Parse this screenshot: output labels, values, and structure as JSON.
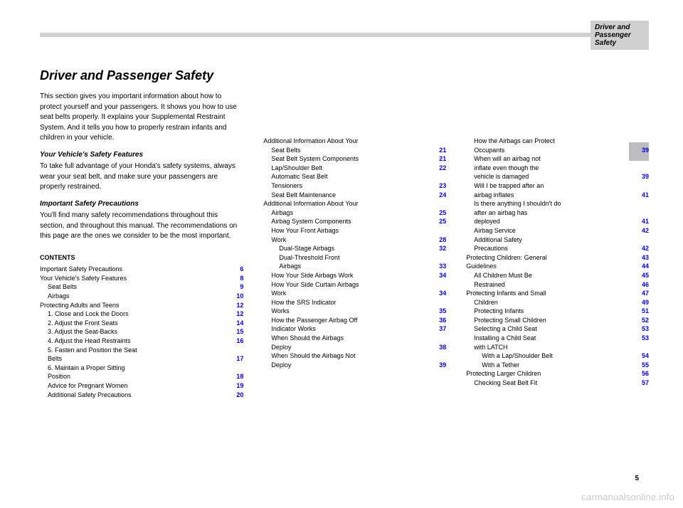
{
  "header": {
    "tab_label": "Driver and Passenger Safety"
  },
  "page_number": "5",
  "watermark": "carmanualsonline.info",
  "title": "Driver and Passenger Safety",
  "intro": {
    "p1": "This section gives you important information about how to protect yourself and your passengers. It shows you how to use seat belts properly. It explains your Supplemental Restraint System. And it tells you how to properly restrain infants and children in your vehicle.",
    "sub1": "Your Vehicle's Safety Features",
    "sub1_text": "To take full advantage of your Honda's safety systems, always wear your seat belt, and make sure your passengers are properly restrained.",
    "sub2": "Important Safety Precautions",
    "sub2_text": "You'll find many safety recommendations throughout this section, and throughout this manual. The recommendations on this page are the ones we consider to be the most important."
  },
  "contents_label": "CONTENTS",
  "col1": [
    {
      "t": "Important Safety Precautions",
      "p": "6",
      "cls": "row"
    },
    {
      "t": "Your Vehicle's Safety Features",
      "p": "8",
      "cls": "row"
    },
    {
      "t": "Seat Belts",
      "p": "9",
      "cls": "row ind1"
    },
    {
      "t": "Airbags",
      "p": "10",
      "cls": "row ind1"
    },
    {
      "t": "Protecting Adults and Teens",
      "p": "12",
      "cls": "row"
    },
    {
      "t": "1. Close and Lock the Doors",
      "p": "12",
      "cls": "row ind1"
    },
    {
      "t": "2. Adjust the Front Seats",
      "p": "14",
      "cls": "row ind1"
    },
    {
      "t": "3. Adjust the Seat-Backs",
      "p": "15",
      "cls": "row ind1"
    },
    {
      "t": "4. Adjust the Head Restraints",
      "p": "16",
      "cls": "row ind1"
    },
    {
      "t": "5. Fasten and Position the Seat",
      "p": "",
      "cls": "row ind1"
    },
    {
      "t": "   Belts",
      "p": "17",
      "cls": "row ind1"
    },
    {
      "t": "6. Maintain a Proper Sitting",
      "p": "",
      "cls": "row ind1"
    },
    {
      "t": "   Position",
      "p": "18",
      "cls": "row ind1"
    },
    {
      "t": "Advice for Pregnant Women",
      "p": "19",
      "cls": "row ind1"
    },
    {
      "t": "Additional Safety Precautions",
      "p": "20",
      "cls": "row ind1"
    }
  ],
  "col2": [
    {
      "t": "Additional Information About Your",
      "p": "",
      "cls": "row"
    },
    {
      "t": "Seat Belts",
      "p": "21",
      "cls": "row ind1"
    },
    {
      "t": "Seat Belt System Components",
      "p": "21",
      "cls": "row ind1"
    },
    {
      "t": "Lap/Shoulder Belt",
      "p": "22",
      "cls": "row ind1"
    },
    {
      "t": "Automatic Seat Belt",
      "p": "",
      "cls": "row ind1"
    },
    {
      "t": "   Tensioners",
      "p": "23",
      "cls": "row ind1"
    },
    {
      "t": "Seat Belt Maintenance",
      "p": "24",
      "cls": "row ind1"
    },
    {
      "t": "Additional Information About Your",
      "p": "",
      "cls": "row"
    },
    {
      "t": "Airbags",
      "p": "25",
      "cls": "row ind1"
    },
    {
      "t": "Airbag System Components",
      "p": "25",
      "cls": "row ind1"
    },
    {
      "t": "How Your Front Airbags",
      "p": "",
      "cls": "row ind1"
    },
    {
      "t": "   Work",
      "p": "28",
      "cls": "row ind1"
    },
    {
      "t": "Dual-Stage Airbags",
      "p": "32",
      "cls": "row ind2"
    },
    {
      "t": "Dual-Threshold Front",
      "p": "",
      "cls": "row ind2"
    },
    {
      "t": "   Airbags",
      "p": "33",
      "cls": "row ind2"
    },
    {
      "t": "How Your Side Airbags Work",
      "p": "34",
      "cls": "row ind1"
    },
    {
      "t": "How Your Side Curtain Airbags",
      "p": "",
      "cls": "row ind1"
    },
    {
      "t": "   Work",
      "p": "34",
      "cls": "row ind1"
    },
    {
      "t": "How the SRS Indicator",
      "p": "",
      "cls": "row ind1"
    },
    {
      "t": "   Works",
      "p": "35",
      "cls": "row ind1"
    },
    {
      "t": "How the Passenger Airbag Off",
      "p": "36",
      "cls": "row ind1"
    },
    {
      "t": "   Indicator Works",
      "p": "37",
      "cls": "row ind1"
    },
    {
      "t": "When Should the Airbags",
      "p": "",
      "cls": "row ind1"
    },
    {
      "t": "   Deploy",
      "p": "38",
      "cls": "row ind1"
    },
    {
      "t": "When Should the Airbags Not",
      "p": "",
      "cls": "row ind1"
    },
    {
      "t": "   Deploy",
      "p": "39",
      "cls": "row ind1"
    }
  ],
  "col3": [
    {
      "t": "How the Airbags can Protect",
      "p": "",
      "cls": "row ind1"
    },
    {
      "t": "   Occupants",
      "p": "39",
      "cls": "row ind1"
    },
    {
      "t": "When will an airbag not",
      "p": "",
      "cls": "row ind1"
    },
    {
      "t": "   inflate even though the",
      "p": "",
      "cls": "row ind1"
    },
    {
      "t": "   vehicle is damaged",
      "p": "39",
      "cls": "row ind1"
    },
    {
      "t": "Will I be trapped after an",
      "p": "",
      "cls": "row ind1"
    },
    {
      "t": "   airbag inflates",
      "p": "41",
      "cls": "row ind1"
    },
    {
      "t": "Is there anything I shouldn't do",
      "p": "",
      "cls": "row ind1"
    },
    {
      "t": "   after an airbag has",
      "p": "",
      "cls": "row ind1"
    },
    {
      "t": "   deployed",
      "p": "41",
      "cls": "row ind1"
    },
    {
      "t": "Airbag Service",
      "p": "42",
      "cls": "row ind1"
    },
    {
      "t": "Additional Safety",
      "p": "",
      "cls": "row ind1"
    },
    {
      "t": "   Precautions",
      "p": "42",
      "cls": "row ind1"
    },
    {
      "t": "Protecting Children: General",
      "p": "43",
      "cls": "row"
    },
    {
      "t": "   Guidelines",
      "p": "44",
      "cls": "row"
    },
    {
      "t": "All Children Must Be",
      "p": "45",
      "cls": "row ind1"
    },
    {
      "t": "   Restrained",
      "p": "46",
      "cls": "row ind1"
    },
    {
      "t": "Protecting Infants and Small",
      "p": "47",
      "cls": "row"
    },
    {
      "t": "   Children",
      "p": "49",
      "cls": "row ind1"
    },
    {
      "t": "Protecting Infants",
      "p": "51",
      "cls": "row ind1"
    },
    {
      "t": "Protecting Small Children",
      "p": "52",
      "cls": "row ind1"
    },
    {
      "t": "Selecting a Child Seat",
      "p": "53",
      "cls": "row ind1"
    },
    {
      "t": "Installing a Child Seat",
      "p": "53",
      "cls": "row ind1"
    },
    {
      "t": "   with LATCH",
      "p": "",
      "cls": "row ind1"
    },
    {
      "t": "With a Lap/Shoulder Belt",
      "p": "54",
      "cls": "row ind2"
    },
    {
      "t": "With a Tether",
      "p": "55",
      "cls": "row ind2"
    },
    {
      "t": "Protecting Larger Children",
      "p": "56",
      "cls": "row"
    },
    {
      "t": "Checking Seat Belt Fit",
      "p": "57",
      "cls": "row ind1"
    }
  ]
}
